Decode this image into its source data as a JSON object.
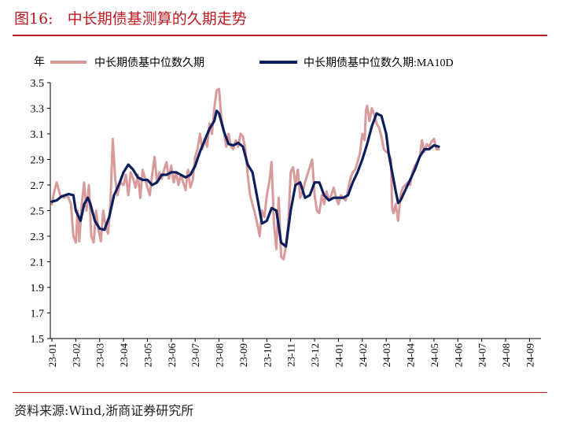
{
  "header": {
    "title": "图16:   中长期债基测算的久期走势"
  },
  "footer": {
    "source": "资料来源:Wind,浙商证券研究所"
  },
  "colors": {
    "accent": "#c0191f",
    "series_raw": "#d99a9c",
    "series_ma": "#0c1e5e"
  },
  "chart_data": {
    "type": "line",
    "title": "",
    "xlabel": "",
    "ylabel": "年",
    "ylim": [
      1.5,
      3.5
    ],
    "yticks": [
      1.5,
      1.7,
      1.9,
      2.1,
      2.3,
      2.5,
      2.7,
      2.9,
      3.1,
      3.3,
      3.5
    ],
    "ytick_labels": [
      "1.5",
      "1.7",
      "1.9",
      "2.1",
      "2.3",
      "2.5",
      "2.7",
      "2.9",
      "3.1",
      "3.3",
      "3.5"
    ],
    "categories": [
      "23-01",
      "23-02",
      "23-03",
      "23-04",
      "23-05",
      "23-06",
      "23-07",
      "23-08",
      "23-09",
      "23-10",
      "23-11",
      "23-12",
      "24-01",
      "24-02",
      "24-03",
      "24-04",
      "24-05",
      "24-06",
      "24-07",
      "24-08",
      "24-09"
    ],
    "legend_position": "top",
    "series": [
      {
        "name": "中长期债基中位数久期",
        "color": "#d99a9c",
        "points": [
          [
            0,
            2.55
          ],
          [
            0.1,
            2.65
          ],
          [
            0.2,
            2.72
          ],
          [
            0.35,
            2.62
          ],
          [
            0.5,
            2.6
          ],
          [
            0.65,
            2.62
          ],
          [
            0.8,
            2.55
          ],
          [
            0.9,
            2.3
          ],
          [
            1.0,
            2.25
          ],
          [
            1.08,
            2.5
          ],
          [
            1.15,
            2.26
          ],
          [
            1.25,
            2.55
          ],
          [
            1.35,
            2.72
          ],
          [
            1.45,
            2.5
          ],
          [
            1.55,
            2.7
          ],
          [
            1.65,
            2.3
          ],
          [
            1.75,
            2.25
          ],
          [
            1.85,
            2.5
          ],
          [
            1.95,
            2.35
          ],
          [
            2.05,
            2.26
          ],
          [
            2.15,
            2.5
          ],
          [
            2.25,
            2.38
          ],
          [
            2.35,
            2.32
          ],
          [
            2.45,
            2.55
          ],
          [
            2.55,
            3.06
          ],
          [
            2.65,
            2.75
          ],
          [
            2.75,
            2.62
          ],
          [
            2.85,
            2.72
          ],
          [
            3.0,
            2.7
          ],
          [
            3.1,
            2.78
          ],
          [
            3.2,
            2.62
          ],
          [
            3.3,
            2.8
          ],
          [
            3.4,
            2.75
          ],
          [
            3.5,
            2.68
          ],
          [
            3.6,
            2.78
          ],
          [
            3.7,
            2.6
          ],
          [
            3.8,
            2.82
          ],
          [
            3.9,
            2.75
          ],
          [
            4.0,
            2.68
          ],
          [
            4.1,
            2.62
          ],
          [
            4.2,
            2.78
          ],
          [
            4.3,
            2.92
          ],
          [
            4.4,
            2.72
          ],
          [
            4.5,
            2.8
          ],
          [
            4.6,
            2.75
          ],
          [
            4.7,
            2.82
          ],
          [
            4.8,
            2.88
          ],
          [
            4.9,
            2.75
          ],
          [
            5.0,
            2.85
          ],
          [
            5.1,
            2.72
          ],
          [
            5.2,
            2.8
          ],
          [
            5.3,
            2.7
          ],
          [
            5.4,
            2.78
          ],
          [
            5.5,
            2.72
          ],
          [
            5.6,
            2.66
          ],
          [
            5.7,
            2.82
          ],
          [
            5.8,
            2.68
          ],
          [
            5.9,
            2.74
          ],
          [
            6.0,
            2.92
          ],
          [
            6.1,
            2.98
          ],
          [
            6.2,
            3.1
          ],
          [
            6.3,
            2.98
          ],
          [
            6.4,
            3.06
          ],
          [
            6.5,
            3.0
          ],
          [
            6.6,
            3.18
          ],
          [
            6.7,
            3.1
          ],
          [
            6.8,
            3.3
          ],
          [
            6.9,
            3.44
          ],
          [
            7.0,
            3.45
          ],
          [
            7.1,
            3.22
          ],
          [
            7.2,
            3.12
          ],
          [
            7.3,
            3.0
          ],
          [
            7.4,
            3.1
          ],
          [
            7.5,
            3.0
          ],
          [
            7.6,
            2.98
          ],
          [
            7.7,
            3.05
          ],
          [
            7.8,
            3.0
          ],
          [
            7.9,
            3.1
          ],
          [
            8.0,
            3.08
          ],
          [
            8.1,
            2.98
          ],
          [
            8.2,
            2.78
          ],
          [
            8.3,
            2.62
          ],
          [
            8.4,
            2.55
          ],
          [
            8.5,
            2.48
          ],
          [
            8.6,
            2.4
          ],
          [
            8.7,
            2.3
          ],
          [
            8.8,
            2.5
          ],
          [
            8.9,
            2.45
          ],
          [
            9.0,
            2.62
          ],
          [
            9.1,
            2.72
          ],
          [
            9.2,
            2.88
          ],
          [
            9.3,
            2.4
          ],
          [
            9.4,
            2.2
          ],
          [
            9.45,
            2.4
          ],
          [
            9.5,
            2.6
          ],
          [
            9.6,
            2.14
          ],
          [
            9.7,
            2.12
          ],
          [
            9.8,
            2.22
          ],
          [
            9.9,
            2.4
          ],
          [
            10.0,
            2.8
          ],
          [
            10.1,
            2.84
          ],
          [
            10.2,
            2.7
          ],
          [
            10.3,
            2.82
          ],
          [
            10.4,
            2.6
          ],
          [
            10.5,
            2.65
          ],
          [
            10.6,
            2.72
          ],
          [
            10.7,
            2.78
          ],
          [
            10.8,
            2.84
          ],
          [
            10.9,
            2.9
          ],
          [
            11.0,
            2.62
          ],
          [
            11.1,
            2.5
          ],
          [
            11.2,
            2.48
          ],
          [
            11.3,
            2.62
          ],
          [
            11.4,
            2.55
          ],
          [
            11.5,
            2.65
          ],
          [
            11.6,
            2.58
          ],
          [
            11.7,
            2.62
          ],
          [
            11.8,
            2.68
          ],
          [
            11.9,
            2.6
          ],
          [
            12.0,
            2.55
          ],
          [
            12.1,
            2.62
          ],
          [
            12.2,
            2.6
          ],
          [
            12.3,
            2.58
          ],
          [
            12.4,
            2.66
          ],
          [
            12.5,
            2.75
          ],
          [
            12.6,
            2.8
          ],
          [
            12.7,
            2.82
          ],
          [
            12.8,
            2.88
          ],
          [
            12.9,
            2.95
          ],
          [
            13.0,
            3.1
          ],
          [
            13.1,
            3.05
          ],
          [
            13.15,
            3.28
          ],
          [
            13.2,
            3.32
          ],
          [
            13.3,
            3.2
          ],
          [
            13.4,
            3.3
          ],
          [
            13.5,
            3.25
          ],
          [
            13.6,
            3.18
          ],
          [
            13.7,
            3.15
          ],
          [
            13.8,
            3.08
          ],
          [
            13.9,
            2.98
          ],
          [
            14.0,
            2.96
          ],
          [
            14.1,
            2.95
          ],
          [
            14.2,
            2.9
          ],
          [
            14.25,
            2.52
          ],
          [
            14.3,
            2.48
          ],
          [
            14.4,
            2.55
          ],
          [
            14.5,
            2.42
          ],
          [
            14.6,
            2.62
          ],
          [
            14.7,
            2.68
          ],
          [
            14.8,
            2.7
          ],
          [
            14.9,
            2.72
          ],
          [
            15.0,
            2.7
          ],
          [
            15.1,
            2.8
          ],
          [
            15.2,
            2.85
          ],
          [
            15.3,
            2.88
          ],
          [
            15.4,
            2.92
          ],
          [
            15.5,
            3.05
          ],
          [
            15.6,
            2.96
          ],
          [
            15.7,
            3.02
          ],
          [
            15.8,
            3.0
          ],
          [
            15.9,
            3.04
          ],
          [
            16.0,
            3.06
          ],
          [
            16.1,
            2.98
          ],
          [
            16.2,
            2.98
          ]
        ]
      },
      {
        "name": "中长期债基中位数久期:MA10D",
        "color": "#0c1e5e",
        "points": [
          [
            0,
            2.57
          ],
          [
            0.2,
            2.58
          ],
          [
            0.4,
            2.61
          ],
          [
            0.7,
            2.63
          ],
          [
            0.9,
            2.62
          ],
          [
            1.0,
            2.5
          ],
          [
            1.2,
            2.42
          ],
          [
            1.35,
            2.55
          ],
          [
            1.5,
            2.6
          ],
          [
            1.6,
            2.56
          ],
          [
            1.8,
            2.42
          ],
          [
            2.0,
            2.36
          ],
          [
            2.2,
            2.35
          ],
          [
            2.4,
            2.45
          ],
          [
            2.6,
            2.62
          ],
          [
            2.8,
            2.7
          ],
          [
            3.0,
            2.8
          ],
          [
            3.2,
            2.86
          ],
          [
            3.4,
            2.82
          ],
          [
            3.6,
            2.76
          ],
          [
            3.8,
            2.74
          ],
          [
            4.0,
            2.74
          ],
          [
            4.2,
            2.7
          ],
          [
            4.4,
            2.72
          ],
          [
            4.6,
            2.78
          ],
          [
            4.8,
            2.78
          ],
          [
            5.0,
            2.8
          ],
          [
            5.2,
            2.8
          ],
          [
            5.4,
            2.78
          ],
          [
            5.6,
            2.76
          ],
          [
            5.8,
            2.78
          ],
          [
            6.0,
            2.85
          ],
          [
            6.2,
            2.96
          ],
          [
            6.4,
            3.05
          ],
          [
            6.6,
            3.14
          ],
          [
            6.8,
            3.2
          ],
          [
            6.9,
            3.28
          ],
          [
            7.0,
            3.26
          ],
          [
            7.2,
            3.12
          ],
          [
            7.4,
            3.02
          ],
          [
            7.6,
            3.01
          ],
          [
            7.8,
            3.03
          ],
          [
            8.0,
            3.0
          ],
          [
            8.2,
            2.86
          ],
          [
            8.4,
            2.8
          ],
          [
            8.6,
            2.6
          ],
          [
            8.8,
            2.4
          ],
          [
            9.0,
            2.42
          ],
          [
            9.2,
            2.52
          ],
          [
            9.4,
            2.5
          ],
          [
            9.6,
            2.25
          ],
          [
            9.8,
            2.22
          ],
          [
            10.0,
            2.5
          ],
          [
            10.2,
            2.7
          ],
          [
            10.4,
            2.72
          ],
          [
            10.6,
            2.6
          ],
          [
            10.8,
            2.62
          ],
          [
            11.0,
            2.72
          ],
          [
            11.2,
            2.72
          ],
          [
            11.4,
            2.62
          ],
          [
            11.6,
            2.58
          ],
          [
            11.8,
            2.6
          ],
          [
            12.0,
            2.6
          ],
          [
            12.2,
            2.6
          ],
          [
            12.4,
            2.62
          ],
          [
            12.6,
            2.72
          ],
          [
            12.8,
            2.8
          ],
          [
            13.0,
            2.9
          ],
          [
            13.2,
            3.02
          ],
          [
            13.4,
            3.16
          ],
          [
            13.6,
            3.26
          ],
          [
            13.8,
            3.24
          ],
          [
            14.0,
            3.1
          ],
          [
            14.1,
            2.95
          ],
          [
            14.2,
            2.85
          ],
          [
            14.4,
            2.65
          ],
          [
            14.5,
            2.56
          ],
          [
            14.6,
            2.58
          ],
          [
            14.8,
            2.66
          ],
          [
            15.0,
            2.74
          ],
          [
            15.2,
            2.82
          ],
          [
            15.4,
            2.92
          ],
          [
            15.6,
            2.98
          ],
          [
            15.8,
            2.98
          ],
          [
            16.0,
            3.01
          ],
          [
            16.2,
            3.0
          ]
        ]
      }
    ]
  }
}
